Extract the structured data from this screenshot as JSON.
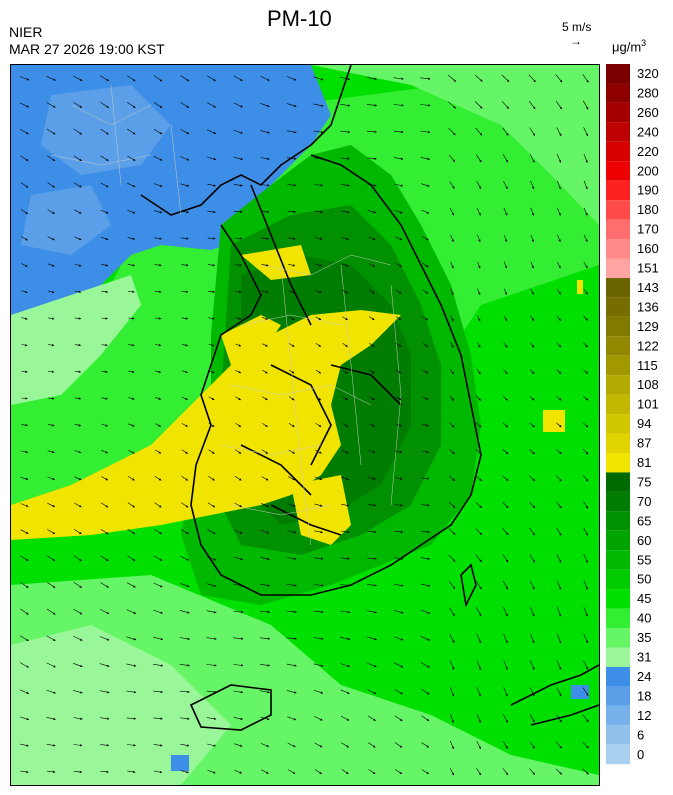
{
  "header": {
    "org": "NIER",
    "title": "PM-10",
    "timestamp": "MAR 27 2026 19:00 KST",
    "vector_scale": "5 m/s",
    "vector_arrow": "→",
    "unit": "μg/m",
    "unit_exp": "3"
  },
  "legend": {
    "bins": [
      {
        "label": "320",
        "color": "#7a0000"
      },
      {
        "label": "280",
        "color": "#8e0000"
      },
      {
        "label": "260",
        "color": "#a50000"
      },
      {
        "label": "240",
        "color": "#bd0000"
      },
      {
        "label": "220",
        "color": "#d60000"
      },
      {
        "label": "200",
        "color": "#ef0000"
      },
      {
        "label": "190",
        "color": "#ff2020"
      },
      {
        "label": "180",
        "color": "#ff4a4a"
      },
      {
        "label": "170",
        "color": "#ff6e6e"
      },
      {
        "label": "160",
        "color": "#ff8a8a"
      },
      {
        "label": "151",
        "color": "#ffa3a3"
      },
      {
        "label": "143",
        "color": "#6b6300"
      },
      {
        "label": "136",
        "color": "#756d00"
      },
      {
        "label": "129",
        "color": "#827a00"
      },
      {
        "label": "122",
        "color": "#918800"
      },
      {
        "label": "115",
        "color": "#a29900"
      },
      {
        "label": "108",
        "color": "#b3aa00"
      },
      {
        "label": "101",
        "color": "#c2b800"
      },
      {
        "label": "94",
        "color": "#d1c700"
      },
      {
        "label": "87",
        "color": "#e0d500"
      },
      {
        "label": "81",
        "color": "#f0e400"
      },
      {
        "label": "75",
        "color": "#006b00"
      },
      {
        "label": "70",
        "color": "#007d00"
      },
      {
        "label": "65",
        "color": "#009000"
      },
      {
        "label": "60",
        "color": "#00a300"
      },
      {
        "label": "55",
        "color": "#00b800"
      },
      {
        "label": "50",
        "color": "#00cc00"
      },
      {
        "label": "45",
        "color": "#00e000"
      },
      {
        "label": "40",
        "color": "#33ee33"
      },
      {
        "label": "35",
        "color": "#66f566"
      },
      {
        "label": "31",
        "color": "#99f799"
      },
      {
        "label": "24",
        "color": "#3d8ee6"
      },
      {
        "label": "18",
        "color": "#5a9fe8"
      },
      {
        "label": "12",
        "color": "#76b1ea"
      },
      {
        "label": "6",
        "color": "#8fc1ec"
      },
      {
        "label": "0",
        "color": "#a9d0ee"
      }
    ]
  }
}
